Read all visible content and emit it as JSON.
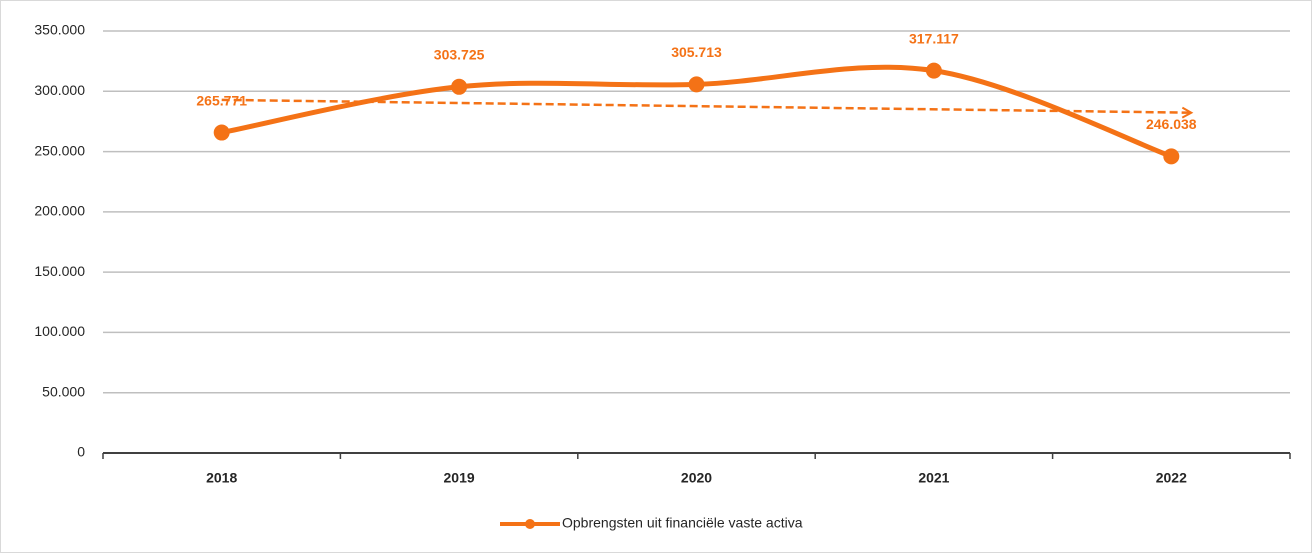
{
  "chart_data": {
    "type": "line",
    "categories": [
      "2018",
      "2019",
      "2020",
      "2021",
      "2022"
    ],
    "series": [
      {
        "name": "Opbrengsten uit financiële vaste activa",
        "color": "#f47216",
        "values": [
          265771,
          303725,
          305713,
          317117,
          246038
        ],
        "value_labels": [
          "265.771",
          "303.725",
          "305.713",
          "317.117",
          "246.038"
        ]
      }
    ],
    "ylim": [
      0,
      350000
    ],
    "yticks": [
      0,
      {
        "value": 50000,
        "label": "50.000"
      },
      {
        "value": 100000,
        "label": "100.000"
      },
      {
        "value": 150000,
        "label": "150.000"
      },
      {
        "value": 200000,
        "label": "200.000"
      },
      {
        "value": 250000,
        "label": "250.000"
      },
      {
        "value": 300000,
        "label": "300.000"
      },
      {
        "value": 350000,
        "label": "350.000"
      }
    ],
    "grid": true,
    "smooth": true,
    "markers": true,
    "trendline": "linear",
    "legend": "bottom"
  }
}
